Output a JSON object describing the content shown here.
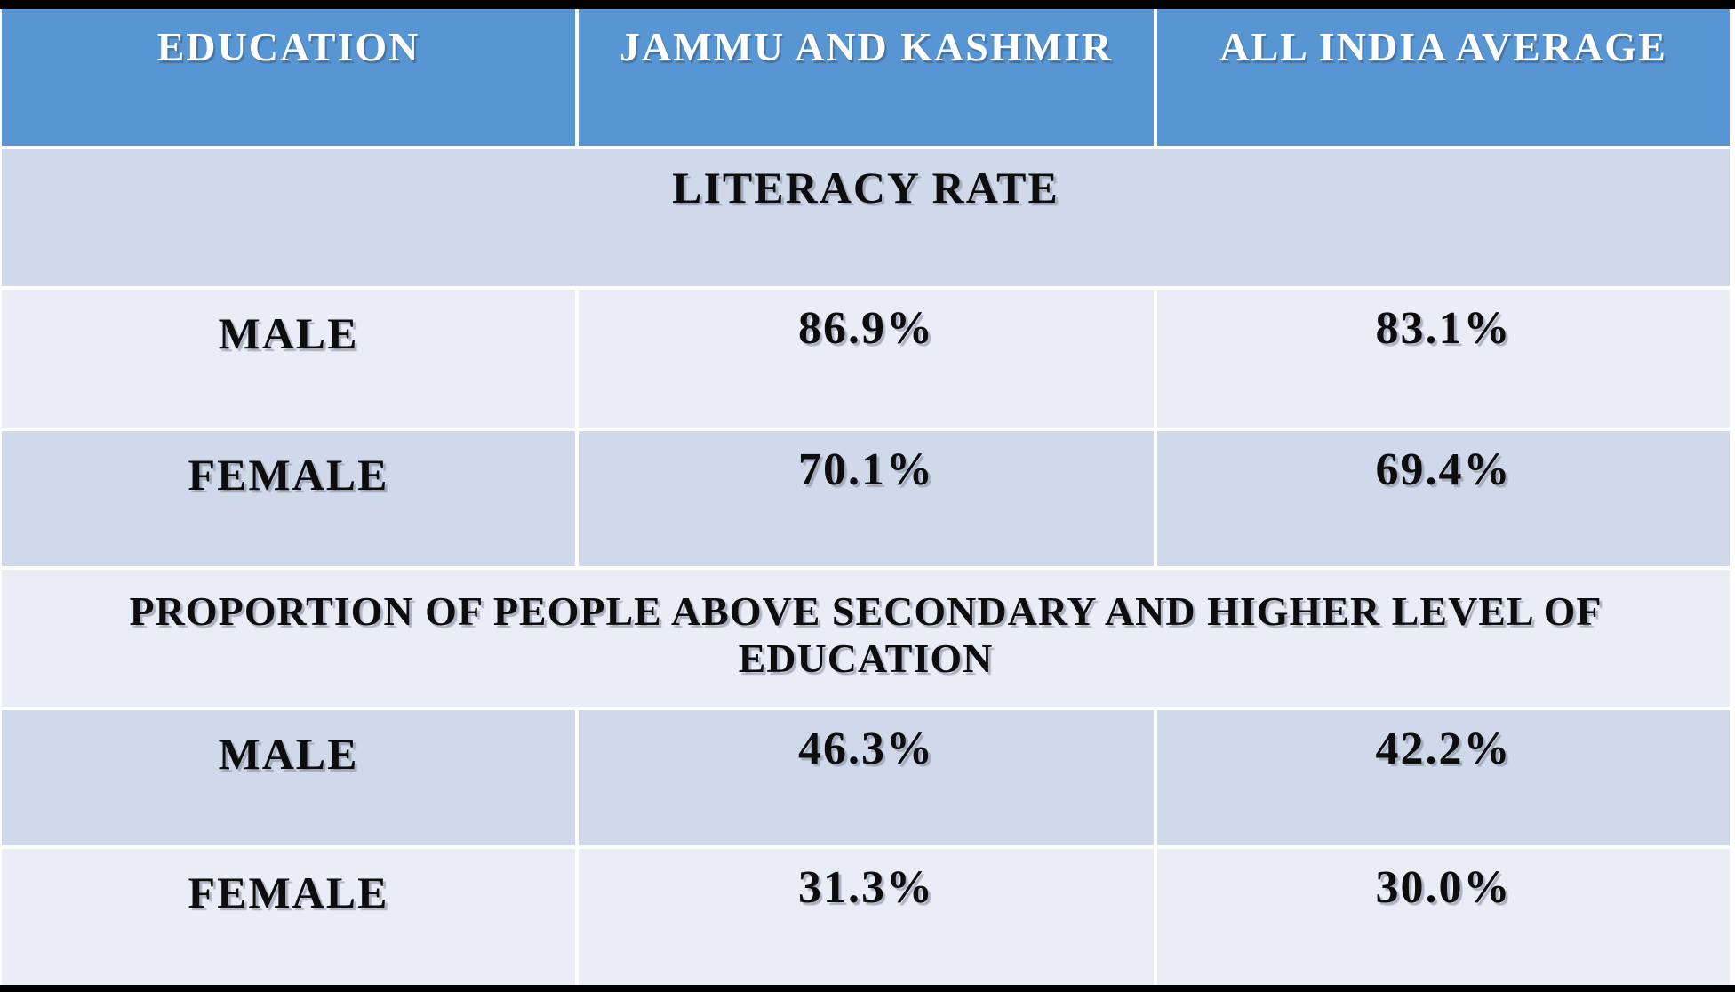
{
  "slide": {
    "columns": [
      "EDUCATION",
      "JAMMU AND KASHMIR",
      "ALL INDIA AVERAGE"
    ],
    "section1": {
      "title": "LITERACY RATE"
    },
    "section2": {
      "title": "PROPORTION OF PEOPLE ABOVE SECONDARY AND HIGHER LEVEL OF EDUCATION"
    },
    "rows": {
      "r1": [
        "MALE",
        "86.9%",
        "83.1%"
      ],
      "r2": [
        "FEMALE",
        "70.1%",
        "69.4%"
      ],
      "r3": [
        "MALE",
        "46.3%",
        "42.2%"
      ],
      "r4": [
        "FEMALE",
        "31.3%",
        "30.0%"
      ]
    }
  },
  "colors": {
    "header_blue": "#5796D2",
    "band_dark": "#D0D9EA",
    "band_light": "#E9EDF6",
    "frame_black": "#000000",
    "grid_line_white": "#FFFFFF",
    "header_text": "#FFFFFF",
    "body_text": "#0D0D0D"
  },
  "chart_data": {
    "type": "table",
    "title": "Education: Jammu and Kashmir vs All India Average",
    "columns": [
      "EDUCATION",
      "JAMMU AND KASHMIR",
      "ALL INDIA AVERAGE"
    ],
    "units": "%",
    "sections": [
      {
        "header": "LITERACY RATE",
        "rows": [
          {
            "group": "MALE",
            "jammu_and_kashmir": 86.9,
            "all_india_average": 83.1
          },
          {
            "group": "FEMALE",
            "jammu_and_kashmir": 70.1,
            "all_india_average": 69.4
          }
        ]
      },
      {
        "header": "PROPORTION OF PEOPLE ABOVE SECONDARY AND HIGHER LEVEL OF EDUCATION",
        "rows": [
          {
            "group": "MALE",
            "jammu_and_kashmir": 46.3,
            "all_india_average": 42.2
          },
          {
            "group": "FEMALE",
            "jammu_and_kashmir": 31.3,
            "all_india_average": 30.0
          }
        ]
      }
    ]
  }
}
